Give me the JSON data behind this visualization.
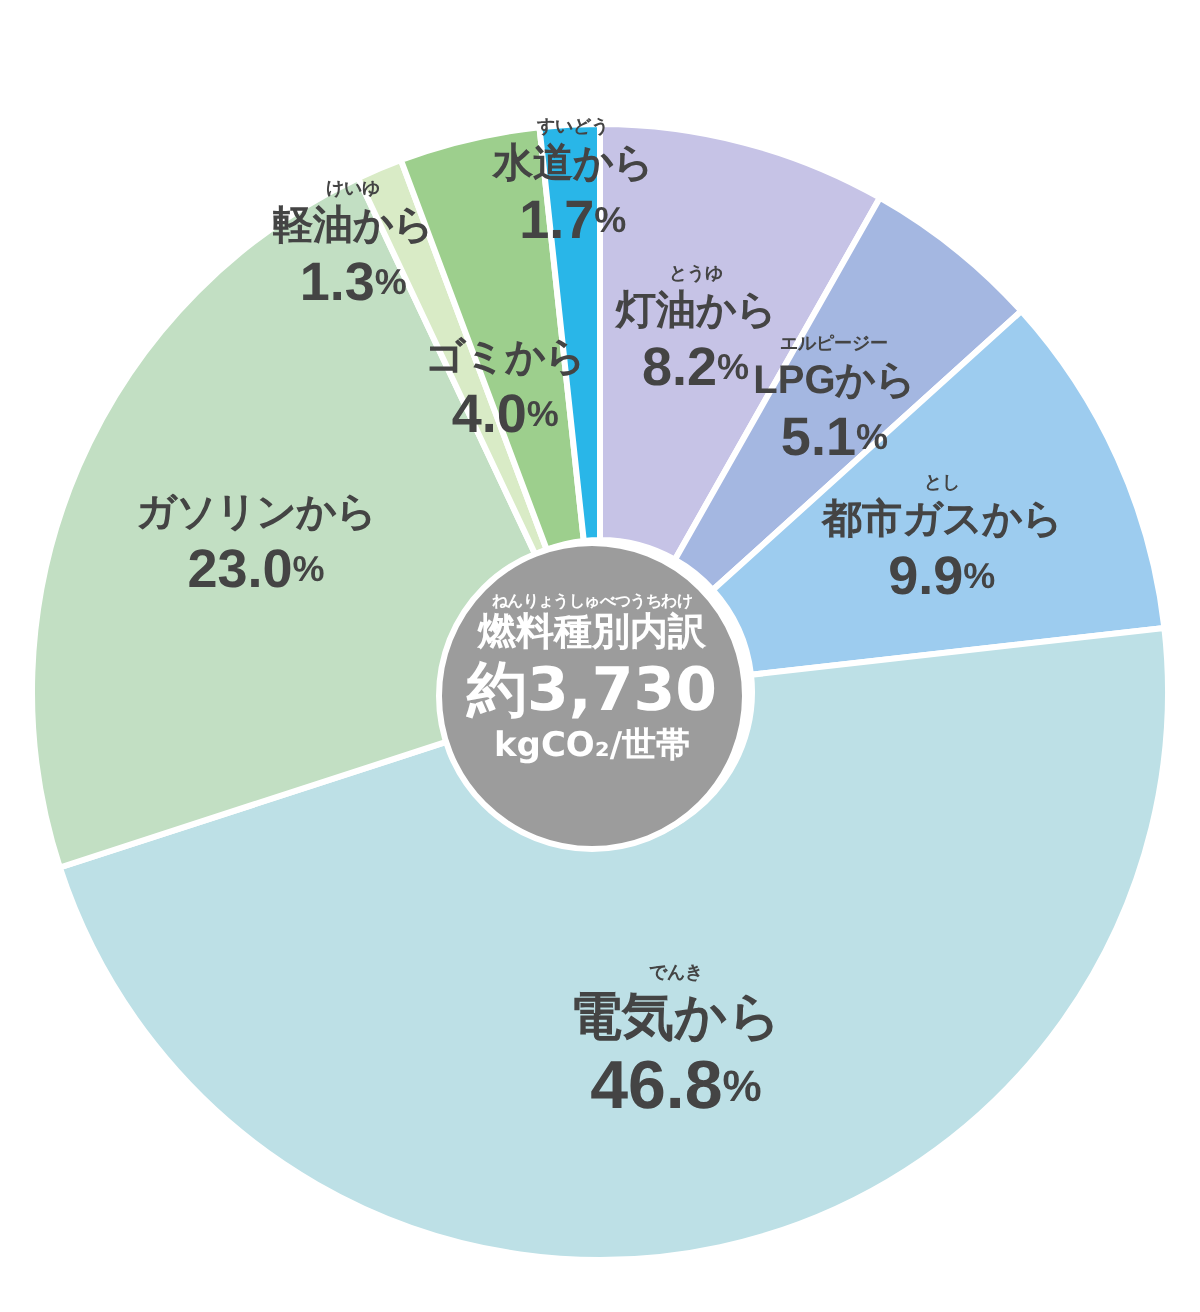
{
  "chart_data": {
    "type": "donut",
    "title": "燃料種別内訳",
    "subtitle": "ねんりょうしゅべつうちわけ",
    "annotations": [
      "約3,730",
      "kgCO₂/世帯",
      {
        "text": "とうゆ",
        "x": "灯油から"
      },
      {
        "text": "エルピージー",
        "x": "LPGから"
      },
      {
        "text": "とし",
        "x": "都市ガスから"
      },
      {
        "text": "でんき",
        "x": "電気から"
      },
      {
        "text": "けいゆ",
        "x": "軽油から"
      },
      {
        "text": "すいどう",
        "x": "水道から"
      }
    ],
    "categories": [
      "灯油から",
      "LPGから",
      "都市ガスから",
      "電気から",
      "ガソリンから",
      "軽油から",
      "ゴミから",
      "水道から"
    ],
    "values": [
      8.2,
      5.1,
      9.9,
      46.8,
      23.0,
      1.3,
      4.0,
      1.7
    ],
    "value_labels": [
      "8.2%",
      "5.1%",
      "9.9%",
      "46.8%",
      "23.0%",
      "1.3%",
      "4.0%",
      "1.7%"
    ],
    "colors": [
      "#c6c3e6",
      "#a4b7e1",
      "#9dccef",
      "#bde0e6",
      "#c2dfc3",
      "#d9ebc6",
      "#9dcf8d",
      "#29b6e8"
    ],
    "legend": false
  }
}
